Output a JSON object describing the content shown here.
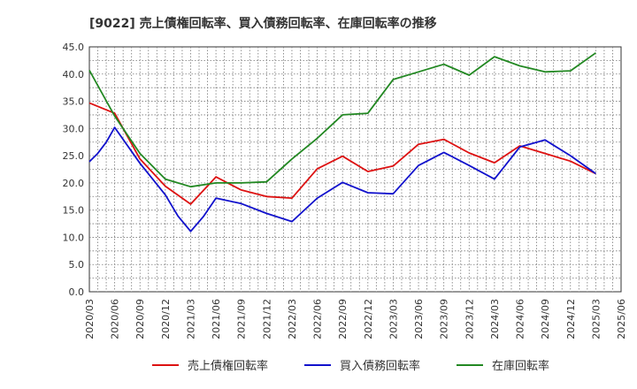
{
  "chart_data": {
    "type": "line",
    "title": "[9022]  売上債権回転率、買入債務回転率、在庫回転率の推移",
    "xlabel": "",
    "ylabel": "",
    "ylim": [
      0,
      45
    ],
    "yticks": [
      "0.0",
      "5.0",
      "10.0",
      "15.0",
      "20.0",
      "25.0",
      "30.0",
      "35.0",
      "40.0",
      "45.0"
    ],
    "categories": [
      "2020/03",
      "2020/06",
      "2020/09",
      "2020/12",
      "2021/03",
      "2021/06",
      "2021/09",
      "2021/12",
      "2022/03",
      "2022/06",
      "2022/09",
      "2022/12",
      "2023/03",
      "2023/06",
      "2023/09",
      "2023/12",
      "2024/03",
      "2024/06",
      "2024/09",
      "2024/12",
      "2025/03",
      "2025/06"
    ],
    "grid": true,
    "legend_position": "bottom",
    "series": [
      {
        "name": "売上債権回転率",
        "color": "#dd1111",
        "points": [
          [
            0,
            34.7
          ],
          [
            1,
            32.8
          ],
          [
            2,
            24.4
          ],
          [
            3,
            19.4
          ],
          [
            4,
            16.1
          ],
          [
            5,
            21.1
          ],
          [
            6,
            18.7
          ],
          [
            7,
            17.5
          ],
          [
            8,
            17.2
          ],
          [
            9,
            22.6
          ],
          [
            10,
            24.9
          ],
          [
            11,
            22.1
          ],
          [
            12,
            23.1
          ],
          [
            13,
            27.1
          ],
          [
            14,
            28.0
          ],
          [
            15,
            25.5
          ],
          [
            16,
            23.7
          ],
          [
            17,
            26.8
          ],
          [
            18,
            25.4
          ],
          [
            19,
            24.0
          ],
          [
            20,
            21.7
          ]
        ]
      },
      {
        "name": "買入債務回転率",
        "color": "#1111cc",
        "points": [
          [
            0,
            23.9
          ],
          [
            0.33,
            25.4
          ],
          [
            0.67,
            27.5
          ],
          [
            1,
            30.2
          ],
          [
            2,
            23.6
          ],
          [
            3,
            17.8
          ],
          [
            3.5,
            13.9
          ],
          [
            4,
            11.1
          ],
          [
            4.5,
            13.8
          ],
          [
            5,
            17.2
          ],
          [
            6,
            16.2
          ],
          [
            7,
            14.4
          ],
          [
            8,
            12.9
          ],
          [
            9,
            17.2
          ],
          [
            10,
            20.1
          ],
          [
            11,
            18.2
          ],
          [
            12,
            18.0
          ],
          [
            13,
            23.2
          ],
          [
            14,
            25.6
          ],
          [
            15,
            23.2
          ],
          [
            16,
            20.7
          ],
          [
            17,
            26.6
          ],
          [
            18,
            27.9
          ],
          [
            19,
            25.0
          ],
          [
            20,
            21.7
          ]
        ]
      },
      {
        "name": "在庫回転率",
        "color": "#228822",
        "points": [
          [
            0,
            40.7
          ],
          [
            1,
            32.3
          ],
          [
            2,
            25.4
          ],
          [
            3,
            20.7
          ],
          [
            4,
            19.3
          ],
          [
            5,
            20.0
          ],
          [
            6,
            20.0
          ],
          [
            7,
            20.2
          ],
          [
            8,
            24.4
          ],
          [
            9,
            28.2
          ],
          [
            10,
            32.5
          ],
          [
            11,
            32.8
          ],
          [
            12,
            39.0
          ],
          [
            13,
            40.4
          ],
          [
            14,
            41.8
          ],
          [
            15,
            39.8
          ],
          [
            16,
            43.2
          ],
          [
            17,
            41.5
          ],
          [
            18,
            40.4
          ],
          [
            19,
            40.6
          ],
          [
            20,
            43.9
          ]
        ]
      }
    ]
  }
}
